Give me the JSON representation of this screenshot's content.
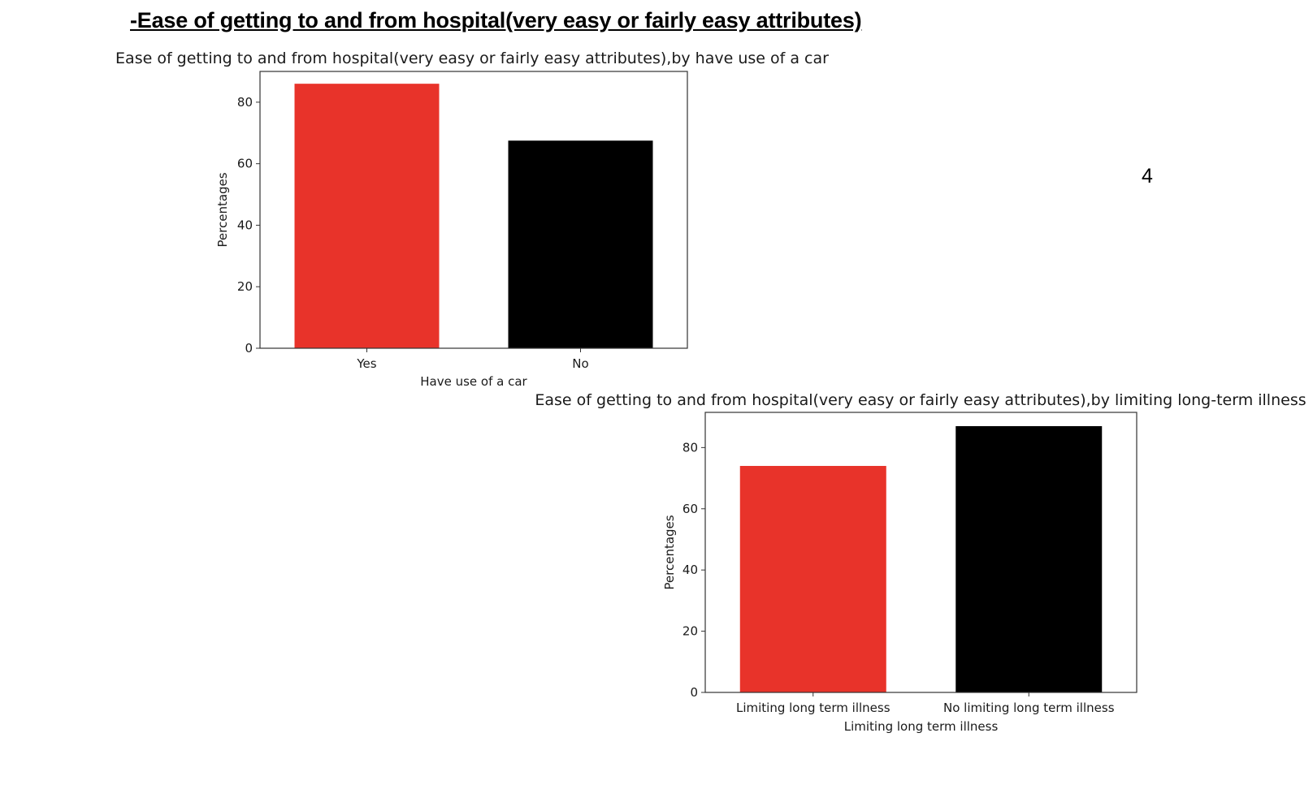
{
  "page": {
    "heading": "-Ease of getting to and from hospital(very easy or fairly easy attributes)",
    "page_number": "4"
  },
  "colors": {
    "bar_primary": "#e8332a",
    "bar_secondary": "#000000",
    "axis": "#333333"
  },
  "chart_data": [
    {
      "type": "bar",
      "title": "Ease of getting to and from hospital(very easy or fairly easy attributes),by have use of a car",
      "xlabel": "Have use of a car",
      "ylabel": "Percentages",
      "categories": [
        "Yes",
        "No"
      ],
      "values": [
        86,
        67.5
      ],
      "ylim": [
        0,
        90
      ],
      "yticks": [
        0,
        20,
        40,
        60,
        80
      ],
      "bar_colors": [
        "#e8332a",
        "#000000"
      ],
      "grid": false
    },
    {
      "type": "bar",
      "title": "Ease of getting to and from hospital(very easy or fairly easy attributes),by limiting long-term illness",
      "xlabel": "Limiting long term illness",
      "ylabel": "Percentages",
      "categories": [
        "Limiting long term illness",
        "No limiting long term illness"
      ],
      "values": [
        74,
        87
      ],
      "ylim": [
        0,
        91.5
      ],
      "yticks": [
        0,
        20,
        40,
        60,
        80
      ],
      "bar_colors": [
        "#e8332a",
        "#000000"
      ],
      "grid": false
    }
  ]
}
